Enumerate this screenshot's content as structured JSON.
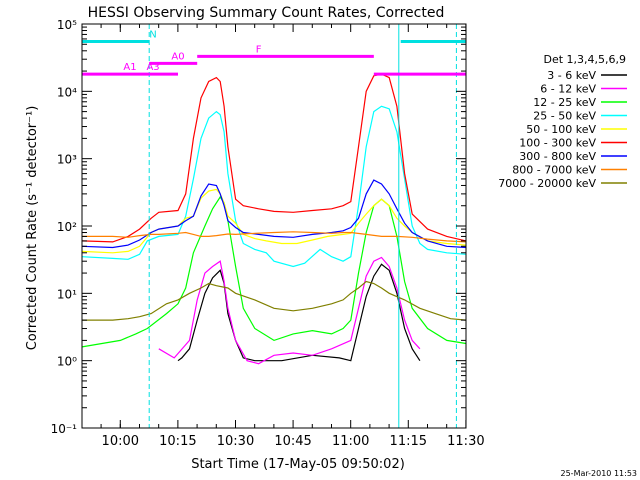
{
  "chart_data": {
    "type": "line",
    "title": "HESSI Observing Summary Count Rates, Corrected",
    "xlabel": "Start Time (17-May-05 09:50:02)",
    "ylabel": "Corrected Count Rate (s⁻¹ detector⁻¹)",
    "y_scale": "log",
    "ylim": [
      0.1,
      100000
    ],
    "xlim_minutes_after_start": [
      0,
      100
    ],
    "x_ticks": [
      {
        "label": "10:00",
        "t": 9.97
      },
      {
        "label": "10:15",
        "t": 24.97
      },
      {
        "label": "10:30",
        "t": 39.97
      },
      {
        "label": "10:45",
        "t": 54.97
      },
      {
        "label": "11:00",
        "t": 69.97
      },
      {
        "label": "11:15",
        "t": 84.97
      },
      {
        "label": "11:30",
        "t": 99.97
      }
    ],
    "y_ticks": [
      {
        "label": "10⁻¹",
        "v": 0.1
      },
      {
        "label": "10⁰",
        "v": 1
      },
      {
        "label": "10¹",
        "v": 10
      },
      {
        "label": "10²",
        "v": 100
      },
      {
        "label": "10³",
        "v": 1000
      },
      {
        "label": "10⁴",
        "v": 10000
      },
      {
        "label": "10⁵",
        "v": 100000
      }
    ],
    "legend_title": "Det 1,3,4,5,6,9",
    "legend_position": "right",
    "footer_date": "25-Mar-2010 11:53",
    "series": [
      {
        "name": "3 - 6 keV",
        "color": "#000000",
        "points": [
          [
            25,
            1
          ],
          [
            26,
            1.1
          ],
          [
            28,
            1.5
          ],
          [
            30,
            4
          ],
          [
            32,
            10
          ],
          [
            34,
            17
          ],
          [
            36,
            22
          ],
          [
            37,
            14
          ],
          [
            38,
            5
          ],
          [
            40,
            2
          ],
          [
            42,
            1.1
          ],
          [
            45,
            1
          ],
          [
            52,
            1
          ],
          [
            60,
            1.2
          ],
          [
            67,
            1.1
          ],
          [
            70,
            1
          ],
          [
            72,
            3
          ],
          [
            74,
            9
          ],
          [
            76,
            18
          ],
          [
            78,
            27
          ],
          [
            80,
            22
          ],
          [
            82,
            10
          ],
          [
            84,
            3
          ],
          [
            86,
            1.5
          ],
          [
            88,
            1
          ]
        ]
      },
      {
        "name": "6 - 12 keV",
        "color": "#ff00ff",
        "points": [
          [
            20,
            1.5
          ],
          [
            24,
            1.1
          ],
          [
            28,
            2
          ],
          [
            30,
            8
          ],
          [
            32,
            20
          ],
          [
            34,
            25
          ],
          [
            36,
            30
          ],
          [
            37,
            15
          ],
          [
            38,
            6
          ],
          [
            40,
            2
          ],
          [
            43,
            1
          ],
          [
            46,
            0.9
          ],
          [
            50,
            1.2
          ],
          [
            55,
            1.3
          ],
          [
            60,
            1.2
          ],
          [
            65,
            1.5
          ],
          [
            70,
            2
          ],
          [
            72,
            6
          ],
          [
            74,
            18
          ],
          [
            76,
            30
          ],
          [
            78,
            34
          ],
          [
            80,
            25
          ],
          [
            82,
            12
          ],
          [
            84,
            4
          ],
          [
            86,
            2
          ],
          [
            88,
            1.5
          ]
        ]
      },
      {
        "name": "12 - 25 keV",
        "color": "#00ff00",
        "points": [
          [
            0,
            1.6
          ],
          [
            10,
            2
          ],
          [
            14,
            2.5
          ],
          [
            17,
            3
          ],
          [
            22,
            5
          ],
          [
            25,
            7
          ],
          [
            27,
            12
          ],
          [
            29,
            40
          ],
          [
            32,
            100
          ],
          [
            34,
            180
          ],
          [
            36,
            270
          ],
          [
            37,
            220
          ],
          [
            38,
            120
          ],
          [
            40,
            25
          ],
          [
            42,
            6
          ],
          [
            45,
            3
          ],
          [
            50,
            2
          ],
          [
            55,
            2.5
          ],
          [
            60,
            2.8
          ],
          [
            65,
            2.5
          ],
          [
            68,
            3
          ],
          [
            70,
            4
          ],
          [
            72,
            20
          ],
          [
            74,
            80
          ],
          [
            76,
            200
          ],
          [
            78,
            250
          ],
          [
            80,
            200
          ],
          [
            82,
            70
          ],
          [
            84,
            15
          ],
          [
            86,
            6
          ],
          [
            90,
            3
          ],
          [
            95,
            2
          ],
          [
            100,
            1.8
          ]
        ]
      },
      {
        "name": "25 - 50 keV",
        "color": "#00ffff",
        "points": [
          [
            0,
            35
          ],
          [
            8,
            33
          ],
          [
            12,
            32
          ],
          [
            15,
            38
          ],
          [
            17,
            60
          ],
          [
            20,
            70
          ],
          [
            25,
            75
          ],
          [
            27,
            140
          ],
          [
            29,
            500
          ],
          [
            31,
            2000
          ],
          [
            33,
            4000
          ],
          [
            35,
            5000
          ],
          [
            36,
            4500
          ],
          [
            37,
            2500
          ],
          [
            38,
            600
          ],
          [
            40,
            120
          ],
          [
            42,
            55
          ],
          [
            45,
            45
          ],
          [
            48,
            40
          ],
          [
            50,
            30
          ],
          [
            55,
            25
          ],
          [
            58,
            28
          ],
          [
            62,
            45
          ],
          [
            65,
            35
          ],
          [
            68,
            30
          ],
          [
            70,
            35
          ],
          [
            72,
            200
          ],
          [
            74,
            1500
          ],
          [
            76,
            5000
          ],
          [
            78,
            6000
          ],
          [
            80,
            5500
          ],
          [
            82,
            2500
          ],
          [
            84,
            500
          ],
          [
            86,
            100
          ],
          [
            88,
            55
          ],
          [
            90,
            45
          ],
          [
            95,
            40
          ],
          [
            100,
            38
          ]
        ]
      },
      {
        "name": "50 - 100 keV",
        "color": "#ffff00",
        "points": [
          [
            0,
            42
          ],
          [
            8,
            40
          ],
          [
            12,
            42
          ],
          [
            15,
            50
          ],
          [
            18,
            80
          ],
          [
            20,
            90
          ],
          [
            25,
            100
          ],
          [
            27,
            130
          ],
          [
            29,
            140
          ],
          [
            31,
            260
          ],
          [
            33,
            330
          ],
          [
            35,
            350
          ],
          [
            36,
            300
          ],
          [
            37,
            220
          ],
          [
            38,
            140
          ],
          [
            40,
            110
          ],
          [
            42,
            75
          ],
          [
            45,
            65
          ],
          [
            48,
            60
          ],
          [
            52,
            55
          ],
          [
            56,
            55
          ],
          [
            60,
            62
          ],
          [
            64,
            70
          ],
          [
            68,
            75
          ],
          [
            70,
            78
          ],
          [
            72,
            110
          ],
          [
            74,
            150
          ],
          [
            76,
            200
          ],
          [
            78,
            250
          ],
          [
            80,
            200
          ],
          [
            82,
            130
          ],
          [
            84,
            100
          ],
          [
            86,
            80
          ],
          [
            90,
            60
          ],
          [
            95,
            55
          ],
          [
            100,
            52
          ]
        ]
      },
      {
        "name": "100 - 300 keV",
        "color": "#ff0000",
        "points": [
          [
            0,
            60
          ],
          [
            8,
            58
          ],
          [
            12,
            70
          ],
          [
            15,
            90
          ],
          [
            18,
            130
          ],
          [
            20,
            160
          ],
          [
            25,
            170
          ],
          [
            27,
            300
          ],
          [
            29,
            2000
          ],
          [
            31,
            8000
          ],
          [
            33,
            14000
          ],
          [
            35,
            16000
          ],
          [
            36,
            14000
          ],
          [
            37,
            6000
          ],
          [
            38,
            1500
          ],
          [
            40,
            250
          ],
          [
            42,
            200
          ],
          [
            46,
            180
          ],
          [
            50,
            165
          ],
          [
            55,
            160
          ],
          [
            60,
            170
          ],
          [
            65,
            180
          ],
          [
            68,
            200
          ],
          [
            70,
            230
          ],
          [
            72,
            1500
          ],
          [
            74,
            10000
          ],
          [
            76,
            17000
          ],
          [
            78,
            18000
          ],
          [
            80,
            16000
          ],
          [
            82,
            6000
          ],
          [
            84,
            600
          ],
          [
            86,
            150
          ],
          [
            90,
            90
          ],
          [
            95,
            70
          ],
          [
            100,
            60
          ]
        ]
      },
      {
        "name": "300 - 800 keV",
        "color": "#0000ff",
        "points": [
          [
            0,
            50
          ],
          [
            8,
            48
          ],
          [
            12,
            52
          ],
          [
            15,
            62
          ],
          [
            18,
            80
          ],
          [
            20,
            90
          ],
          [
            25,
            100
          ],
          [
            27,
            120
          ],
          [
            29,
            140
          ],
          [
            31,
            280
          ],
          [
            33,
            420
          ],
          [
            35,
            400
          ],
          [
            36,
            300
          ],
          [
            37,
            200
          ],
          [
            38,
            120
          ],
          [
            40,
            95
          ],
          [
            42,
            80
          ],
          [
            46,
            75
          ],
          [
            50,
            70
          ],
          [
            55,
            68
          ],
          [
            60,
            75
          ],
          [
            65,
            80
          ],
          [
            68,
            85
          ],
          [
            70,
            95
          ],
          [
            72,
            130
          ],
          [
            74,
            300
          ],
          [
            76,
            480
          ],
          [
            78,
            420
          ],
          [
            80,
            300
          ],
          [
            82,
            180
          ],
          [
            84,
            110
          ],
          [
            86,
            80
          ],
          [
            90,
            60
          ],
          [
            95,
            50
          ],
          [
            100,
            48
          ]
        ]
      },
      {
        "name": "800 - 7000 keV",
        "color": "#ff8000",
        "points": [
          [
            0,
            70
          ],
          [
            8,
            70
          ],
          [
            12,
            68
          ],
          [
            15,
            72
          ],
          [
            18,
            75
          ],
          [
            20,
            75
          ],
          [
            25,
            78
          ],
          [
            27,
            80
          ],
          [
            29,
            75
          ],
          [
            31,
            70
          ],
          [
            33,
            70
          ],
          [
            35,
            72
          ],
          [
            38,
            76
          ],
          [
            40,
            75
          ],
          [
            45,
            78
          ],
          [
            50,
            80
          ],
          [
            55,
            82
          ],
          [
            60,
            80
          ],
          [
            65,
            78
          ],
          [
            68,
            80
          ],
          [
            70,
            80
          ],
          [
            74,
            75
          ],
          [
            78,
            70
          ],
          [
            82,
            70
          ],
          [
            86,
            68
          ],
          [
            90,
            64
          ],
          [
            95,
            60
          ],
          [
            100,
            58
          ]
        ]
      },
      {
        "name": "7000 - 20000 keV",
        "color": "#808000",
        "points": [
          [
            0,
            4
          ],
          [
            8,
            4
          ],
          [
            12,
            4.2
          ],
          [
            15,
            4.5
          ],
          [
            18,
            5
          ],
          [
            22,
            7
          ],
          [
            25,
            8
          ],
          [
            28,
            10
          ],
          [
            31,
            12
          ],
          [
            33,
            14
          ],
          [
            35,
            13
          ],
          [
            38,
            12
          ],
          [
            40,
            10
          ],
          [
            45,
            8
          ],
          [
            50,
            6
          ],
          [
            55,
            5.5
          ],
          [
            60,
            6
          ],
          [
            65,
            7
          ],
          [
            68,
            8
          ],
          [
            70,
            10
          ],
          [
            72,
            12
          ],
          [
            74,
            15
          ],
          [
            76,
            14
          ],
          [
            78,
            12
          ],
          [
            80,
            10
          ],
          [
            84,
            8
          ],
          [
            88,
            6
          ],
          [
            92,
            5
          ],
          [
            96,
            4.2
          ],
          [
            100,
            4
          ]
        ]
      }
    ],
    "annotations": [
      {
        "label": "N",
        "color": "#00e0e0",
        "y": 55000,
        "segments": [
          [
            0,
            17.5
          ],
          [
            83,
            100
          ]
        ],
        "label_at": 18.5
      },
      {
        "label": "F",
        "color": "#ff00ff",
        "y": 33000,
        "segments": [
          [
            30,
            76
          ]
        ],
        "label_at": 46
      },
      {
        "label": "A0",
        "color": "#ff00ff",
        "y": 26000,
        "segments": [
          [
            17.5,
            30
          ]
        ],
        "label_at": 25
      },
      {
        "label": "A1",
        "color": "#ff00ff",
        "y": 18000,
        "segments": [
          [
            0,
            17.5
          ]
        ],
        "label_at": 12.5
      },
      {
        "label": "A3",
        "color": "#ff00ff",
        "y": 18000,
        "segments": [
          [
            17.5,
            25
          ]
        ],
        "label_at": 18.5
      },
      {
        "label": "",
        "color": "#ff00ff",
        "y": 18000,
        "segments": [
          [
            76,
            100
          ]
        ],
        "label_at": 0
      }
    ],
    "event_lines": [
      {
        "t": 17.5,
        "color": "#00e0e0",
        "dashed": true
      },
      {
        "t": 82.5,
        "color": "#00e0e0",
        "dashed": false
      },
      {
        "t": 97.5,
        "color": "#00e0e0",
        "dashed": true
      }
    ]
  }
}
